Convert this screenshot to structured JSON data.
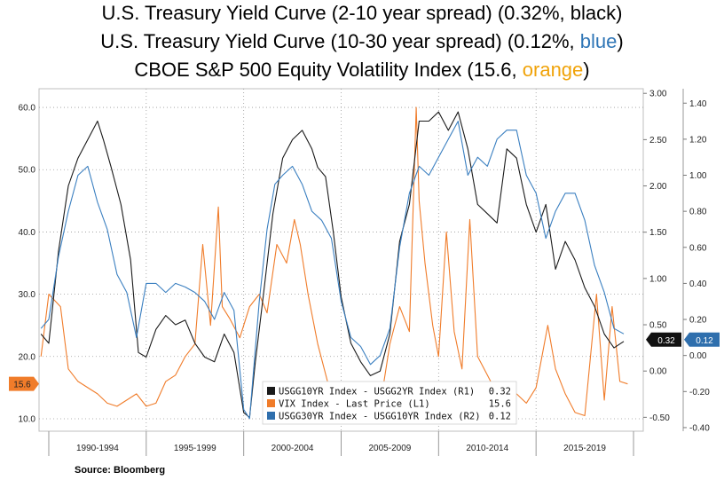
{
  "titles": {
    "line1_prefix": "U.S. Treasury Yield Curve (2-10 year spread) (0.32%, ",
    "line1_highlight": "black",
    "line1_suffix": ")",
    "line2_prefix": "U.S. Treasury Yield Curve (10-30 year spread) (0.12%, ",
    "line2_highlight": "blue",
    "line2_suffix": ")",
    "line3_prefix": "CBOE S&P 500 Equity Volatility Index (15.6, ",
    "line3_highlight": "orange",
    "line3_suffix": ")"
  },
  "source": "Source: Bloomberg",
  "colors": {
    "black_series": "#1a1a1a",
    "orange_series": "#f07c2a",
    "blue_series": "#3a7fc0",
    "title_blue": "#2e75b6",
    "title_orange": "#f0a30a"
  },
  "chart_data": {
    "type": "line",
    "categories": [
      "1990-1994",
      "1995-1999",
      "2000-2004",
      "2005-2009",
      "2010-2014",
      "2015-2019"
    ],
    "x_range": [
      1989.5,
      2020.5
    ],
    "axes": {
      "L1": {
        "ticks": [
          "10.0",
          "20.0",
          "30.0",
          "40.0",
          "50.0",
          "60.0"
        ],
        "range": [
          8,
          63
        ]
      },
      "R1": {
        "ticks": [
          "-0.50",
          "0.00",
          "0.50",
          "1.00",
          "1.50",
          "2.00",
          "2.50",
          "3.00"
        ],
        "range": [
          -0.65,
          3.05
        ]
      },
      "R2": {
        "ticks": [
          "-0.40",
          "-0.20",
          "0.00",
          "0.20",
          "0.40",
          "0.60",
          "0.80",
          "1.00",
          "1.20",
          "1.40"
        ],
        "range": [
          -0.42,
          1.48
        ]
      }
    },
    "last_value_tags": {
      "L1": "15.6",
      "R1": "0.32",
      "R2": "0.12"
    },
    "legend": {
      "placement": "bottom-center",
      "items": [
        {
          "label": "USGG10YR Index - USGG2YR Index (R1)",
          "value": "0.32"
        },
        {
          "label": "VIX Index - Last Price (L1)",
          "value": "15.6"
        },
        {
          "label": "USGG30YR Index - USGG10YR Index (R2)",
          "value": "0.12"
        }
      ]
    },
    "series": [
      {
        "axis": "R1",
        "x": [
          1989.6,
          1990.0,
          1990.5,
          1991.0,
          1991.5,
          1992.0,
          1992.5,
          1992.8,
          1993.2,
          1993.7,
          1994.2,
          1994.6,
          1995.0,
          1995.5,
          1996.0,
          1996.5,
          1997.0,
          1997.5,
          1998.0,
          1998.5,
          1999.0,
          1999.5,
          2000.0,
          2000.3,
          2000.6,
          2001.0,
          2001.5,
          2002.0,
          2002.5,
          2003.0,
          2003.5,
          2003.8,
          2004.2,
          2004.6,
          2005.0,
          2005.5,
          2006.0,
          2006.5,
          2007.0,
          2007.5,
          2008.0,
          2008.5,
          2009.0,
          2009.5,
          2010.0,
          2010.5,
          2011.0,
          2011.5,
          2012.0,
          2012.5,
          2013.0,
          2013.5,
          2014.0,
          2014.5,
          2015.0,
          2015.5,
          2016.0,
          2016.5,
          2017.0,
          2017.5,
          2018.0,
          2018.5,
          2019.0,
          2019.5
        ],
        "values": [
          0.4,
          0.3,
          1.3,
          2.0,
          2.3,
          2.5,
          2.7,
          2.5,
          2.2,
          1.8,
          1.2,
          0.2,
          0.15,
          0.45,
          0.6,
          0.5,
          0.55,
          0.3,
          0.15,
          0.1,
          0.4,
          0.2,
          -0.45,
          -0.5,
          0.1,
          0.8,
          1.7,
          2.3,
          2.5,
          2.6,
          2.4,
          2.2,
          2.1,
          1.5,
          0.8,
          0.3,
          0.1,
          -0.05,
          0.0,
          0.4,
          1.4,
          1.8,
          2.7,
          2.7,
          2.8,
          2.6,
          2.8,
          2.4,
          1.8,
          1.7,
          1.6,
          2.4,
          2.3,
          1.8,
          1.5,
          1.8,
          1.1,
          1.4,
          1.2,
          0.9,
          0.7,
          0.4,
          0.25,
          0.32
        ]
      },
      {
        "axis": "L1",
        "x": [
          1989.6,
          1990.0,
          1990.6,
          1991.0,
          1991.5,
          1992.0,
          1992.5,
          1993.0,
          1993.5,
          1994.0,
          1994.5,
          1995.0,
          1995.5,
          1996.0,
          1996.5,
          1997.0,
          1997.5,
          1997.9,
          1998.3,
          1998.7,
          1998.9,
          1999.3,
          1999.8,
          2000.3,
          2000.8,
          2001.2,
          2001.7,
          2002.2,
          2002.6,
          2002.9,
          2003.3,
          2003.8,
          2004.3,
          2004.8,
          2005.5,
          2006.0,
          2006.5,
          2007.0,
          2007.5,
          2008.0,
          2008.5,
          2008.85,
          2009.0,
          2009.3,
          2009.7,
          2010.0,
          2010.4,
          2010.8,
          2011.2,
          2011.6,
          2012.0,
          2012.5,
          2013.0,
          2013.5,
          2014.0,
          2014.5,
          2015.0,
          2015.6,
          2016.0,
          2016.5,
          2017.0,
          2017.5,
          2018.1,
          2018.5,
          2018.9,
          2019.3,
          2019.7
        ],
        "values": [
          20.0,
          30.0,
          28.0,
          18.0,
          16.0,
          15.0,
          14.0,
          12.5,
          12.0,
          13.0,
          14.0,
          12.0,
          12.5,
          16.0,
          17.0,
          20.0,
          22.0,
          38.0,
          25.0,
          44.0,
          28.0,
          26.0,
          23.0,
          28.0,
          30.0,
          27.0,
          38.0,
          35.0,
          42.0,
          38.0,
          30.0,
          22.0,
          16.0,
          14.0,
          12.0,
          11.0,
          14.0,
          12.0,
          22.0,
          28.0,
          24.0,
          60.0,
          45.0,
          35.0,
          25.0,
          20.0,
          40.0,
          24.0,
          18.0,
          42.0,
          20.0,
          17.0,
          14.0,
          13.0,
          14.0,
          12.5,
          15.0,
          25.0,
          18.0,
          14.0,
          11.0,
          10.5,
          30.0,
          13.0,
          28.0,
          16.0,
          15.6
        ]
      },
      {
        "axis": "R2",
        "x": [
          1989.6,
          1990.0,
          1990.5,
          1991.0,
          1991.5,
          1992.0,
          1992.5,
          1993.0,
          1993.5,
          1994.0,
          1994.5,
          1995.0,
          1995.5,
          1996.0,
          1996.5,
          1997.0,
          1997.5,
          1998.0,
          1998.5,
          1999.0,
          1999.5,
          2000.0,
          2000.3,
          2000.8,
          2001.2,
          2001.6,
          2002.0,
          2002.5,
          2003.0,
          2003.5,
          2004.0,
          2004.5,
          2005.0,
          2005.5,
          2006.0,
          2006.5,
          2007.0,
          2007.5,
          2008.0,
          2008.5,
          2009.0,
          2009.5,
          2010.0,
          2010.5,
          2011.0,
          2011.5,
          2012.0,
          2012.5,
          2013.0,
          2013.5,
          2014.0,
          2014.5,
          2015.0,
          2015.5,
          2016.0,
          2016.5,
          2017.0,
          2017.5,
          2018.0,
          2018.5,
          2019.0,
          2019.5
        ],
        "values": [
          0.15,
          0.2,
          0.55,
          0.8,
          1.0,
          1.05,
          0.85,
          0.7,
          0.45,
          0.35,
          0.1,
          0.4,
          0.4,
          0.35,
          0.4,
          0.38,
          0.35,
          0.3,
          0.2,
          0.35,
          0.25,
          -0.3,
          -0.35,
          0.3,
          0.7,
          0.95,
          1.0,
          1.05,
          0.95,
          0.8,
          0.75,
          0.65,
          0.3,
          0.1,
          0.05,
          -0.05,
          0.0,
          0.15,
          0.6,
          0.9,
          1.05,
          1.0,
          1.1,
          1.2,
          1.3,
          1.0,
          1.1,
          1.05,
          1.2,
          1.25,
          1.25,
          1.0,
          0.9,
          0.65,
          0.8,
          0.9,
          0.9,
          0.75,
          0.5,
          0.35,
          0.15,
          0.12
        ]
      }
    ]
  }
}
